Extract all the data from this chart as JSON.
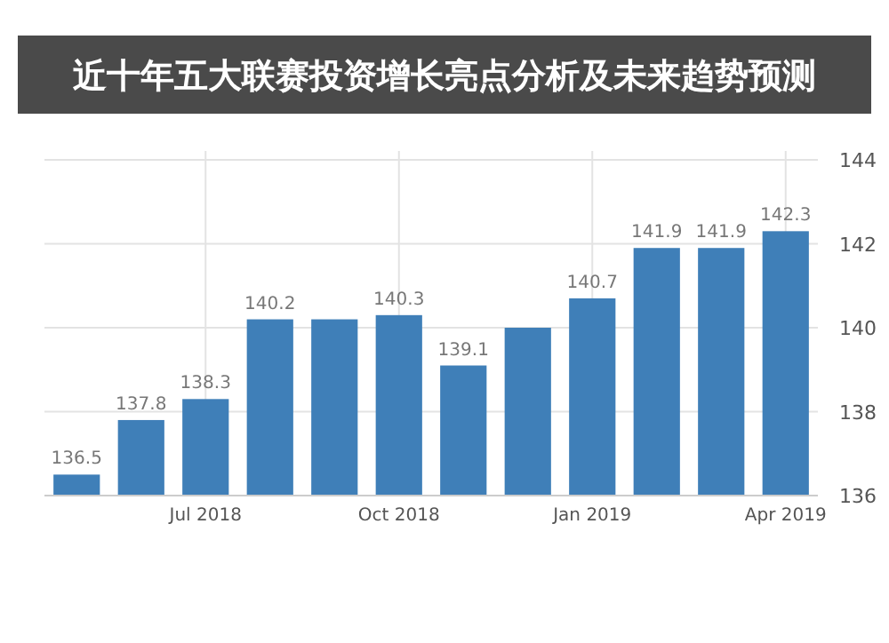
{
  "chart_data": {
    "type": "bar",
    "title": "近十年五大联赛投资增长亮点分析及未来趋势预测",
    "categories": [
      null,
      null,
      "Jul 2018",
      null,
      null,
      "Oct 2018",
      null,
      null,
      "Jan 2019",
      null,
      null,
      "Apr 2019"
    ],
    "values": [
      136.5,
      137.8,
      138.3,
      140.2,
      140.2,
      140.3,
      139.1,
      140.0,
      140.7,
      141.9,
      141.9,
      142.3
    ],
    "value_labels": [
      "136.5",
      "137.8",
      "138.3",
      "140.2",
      null,
      "140.3",
      "139.1",
      null,
      "140.7",
      "141.9",
      "141.9",
      "142.3"
    ],
    "color": "#3f7fb8",
    "ylim": [
      136,
      144
    ],
    "yticks": [
      136,
      138,
      140,
      142,
      144
    ],
    "grid": true
  }
}
